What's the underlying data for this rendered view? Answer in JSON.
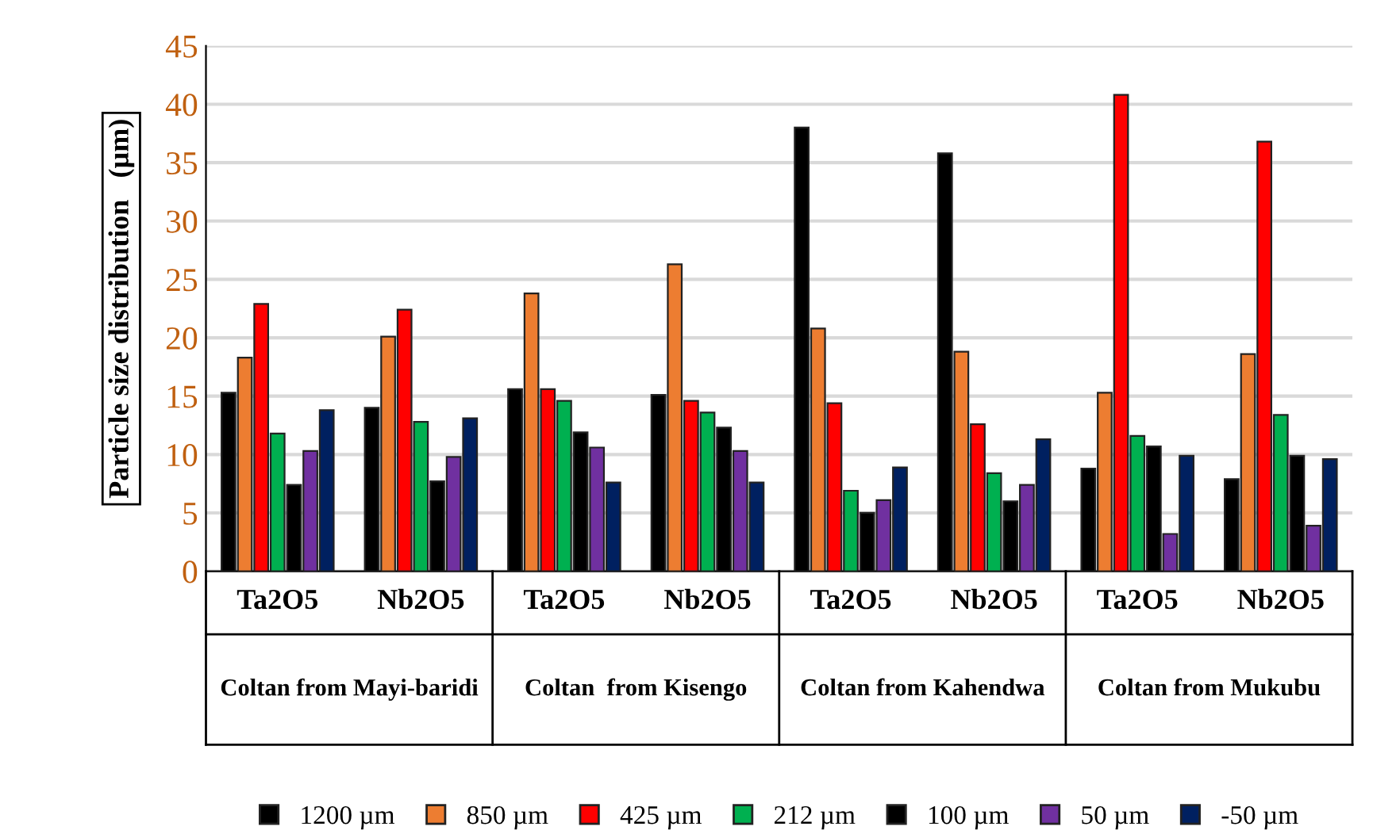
{
  "chart_data": {
    "type": "bar",
    "ylabel": "Particle size distribution   (µm)",
    "categories": [
      "Ta2O5",
      "Nb2O5",
      "Ta2O5",
      "Nb2O5",
      "Ta2O5",
      "Nb2O5",
      "Ta2O5",
      "Nb2O5"
    ],
    "annotations": [
      "Coltan from Mayi-baridi",
      "Coltan  from Kisengo",
      "Coltan from Kahendwa",
      "Coltan from Mukubu"
    ],
    "series": [
      {
        "name": "1200 µm",
        "color": "#000000",
        "values": [
          15.3,
          14.0,
          15.6,
          15.1,
          38.0,
          35.8,
          8.8,
          7.9
        ]
      },
      {
        "name": "850 µm",
        "color": "#ed7d31",
        "values": [
          18.3,
          20.1,
          23.8,
          26.3,
          20.8,
          18.8,
          15.3,
          18.6
        ]
      },
      {
        "name": "425 µm",
        "color": "#ff0000",
        "values": [
          22.9,
          22.4,
          15.6,
          14.6,
          14.4,
          12.6,
          40.8,
          36.8
        ]
      },
      {
        "name": "212 µm",
        "color": "#00b050",
        "values": [
          11.8,
          12.8,
          14.6,
          13.6,
          6.9,
          8.4,
          11.6,
          13.4
        ]
      },
      {
        "name": "100 µm",
        "color": "#000000",
        "values": [
          7.4,
          7.7,
          11.9,
          12.3,
          5.0,
          6.0,
          10.7,
          9.9
        ]
      },
      {
        "name": "50 µm",
        "color": "#7030a0",
        "values": [
          10.3,
          9.8,
          10.6,
          10.3,
          6.1,
          7.4,
          3.2,
          3.9
        ]
      },
      {
        "name": "-50 µm",
        "color": "#002060",
        "values": [
          13.8,
          13.1,
          7.6,
          7.6,
          8.9,
          11.3,
          9.9,
          9.6
        ]
      }
    ],
    "ylim": [
      0,
      45
    ],
    "yticks": [
      0,
      5,
      10,
      15,
      20,
      25,
      30,
      35,
      40,
      45
    ],
    "grid": "y",
    "legend": "bottom"
  }
}
